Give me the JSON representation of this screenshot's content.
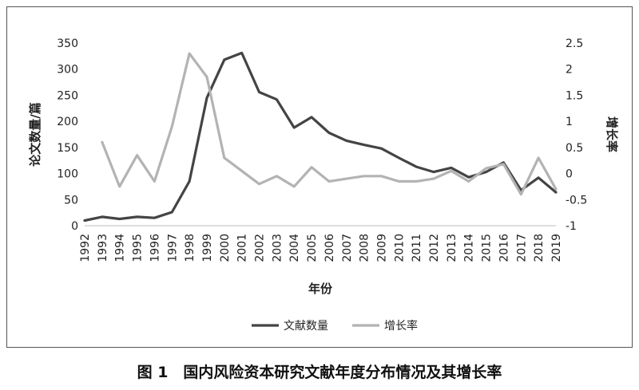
{
  "chart_data": {
    "type": "line",
    "x": [
      "1992",
      "1993",
      "1994",
      "1995",
      "1996",
      "1997",
      "1998",
      "1999",
      "2000",
      "2001",
      "2002",
      "2003",
      "2004",
      "2005",
      "2006",
      "2007",
      "2008",
      "2009",
      "2010",
      "2011",
      "2012",
      "2013",
      "2014",
      "2015",
      "2016",
      "2017",
      "2018",
      "2019"
    ],
    "xlabel": "年份",
    "ylabel_left": "论文数量/篇",
    "ylabel_right": "增长率",
    "ylim_left": [
      0,
      350
    ],
    "yticks_left": [
      "0",
      "50",
      "100",
      "150",
      "200",
      "250",
      "300",
      "350"
    ],
    "ylim_right": [
      -1,
      2.5
    ],
    "yticks_right": [
      "-1",
      "-0.5",
      "0",
      "0.5",
      "1",
      "1.5",
      "2",
      "2.5"
    ],
    "grid": false,
    "legend_position": "bottom",
    "series": [
      {
        "name": "文献数量",
        "axis": "left",
        "color": "#444444",
        "values": [
          10,
          17,
          13,
          17,
          15,
          26,
          85,
          245,
          318,
          331,
          256,
          242,
          188,
          208,
          178,
          163,
          155,
          148,
          130,
          113,
          103,
          111,
          93,
          103,
          121,
          68,
          92,
          64
        ]
      },
      {
        "name": "增长率",
        "axis": "right",
        "color": "#b3b3b3",
        "values": [
          null,
          0.6,
          -0.25,
          0.35,
          -0.15,
          0.9,
          2.3,
          1.85,
          0.3,
          0.05,
          -0.2,
          -0.05,
          -0.25,
          0.12,
          -0.15,
          -0.1,
          -0.05,
          -0.05,
          -0.15,
          -0.15,
          -0.1,
          0.05,
          -0.15,
          0.1,
          0.18,
          -0.4,
          0.3,
          -0.3
        ]
      }
    ]
  },
  "caption": "图 1　国内风险资本研究文献年度分布情况及其增长率"
}
